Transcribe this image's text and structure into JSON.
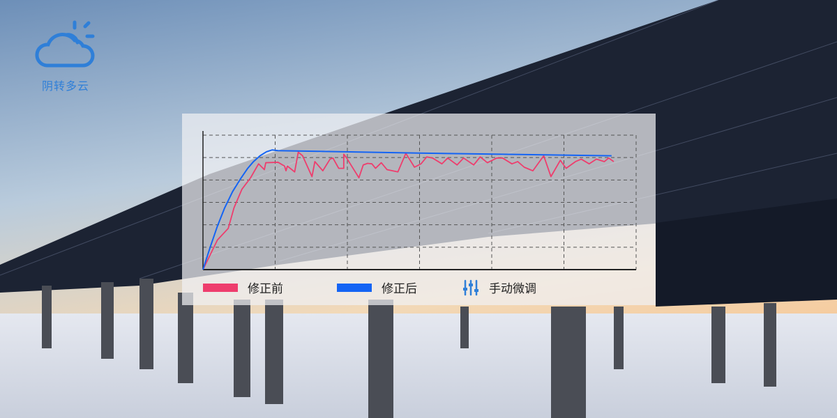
{
  "weather": {
    "label": "阴转多云",
    "icon": "cloud-sun-icon",
    "color": "#2f7fd8"
  },
  "legend": {
    "before": "修正前",
    "after": "修正后",
    "manual": "手动微调",
    "manual_icon": "sliders-icon"
  },
  "chart_data": {
    "type": "line",
    "title": "",
    "xlabel": "",
    "ylabel": "",
    "xlim": [
      0,
      6
    ],
    "ylim": [
      0,
      6
    ],
    "grid": true,
    "grid_style": "dashed",
    "legend_position": "bottom",
    "series": [
      {
        "name": "修正前",
        "color": "#ee3d6d",
        "points": [
          [
            0,
            0
          ],
          [
            0.2,
            1.32
          ],
          [
            0.35,
            1.84
          ],
          [
            0.43,
            2.76
          ],
          [
            0.54,
            3.59
          ],
          [
            0.66,
            4.1
          ],
          [
            0.77,
            4.72
          ],
          [
            0.85,
            4.46
          ],
          [
            0.87,
            4.77
          ],
          [
            1.04,
            4.79
          ],
          [
            1.13,
            4.62
          ],
          [
            1.15,
            4.41
          ],
          [
            1.17,
            4.62
          ],
          [
            1.27,
            4.36
          ],
          [
            1.32,
            5.24
          ],
          [
            1.38,
            5.08
          ],
          [
            1.51,
            4.15
          ],
          [
            1.55,
            4.82
          ],
          [
            1.66,
            4.41
          ],
          [
            1.76,
            4.93
          ],
          [
            1.8,
            4.98
          ],
          [
            1.88,
            4.52
          ],
          [
            1.95,
            4.52
          ],
          [
            1.95,
            5.15
          ],
          [
            1.99,
            4.98
          ],
          [
            2.16,
            4.1
          ],
          [
            2.22,
            4.67
          ],
          [
            2.28,
            4.74
          ],
          [
            2.34,
            4.72
          ],
          [
            2.39,
            4.52
          ],
          [
            2.47,
            4.77
          ],
          [
            2.55,
            4.46
          ],
          [
            2.7,
            4.36
          ],
          [
            2.81,
            5.19
          ],
          [
            2.93,
            4.57
          ],
          [
            3.02,
            4.72
          ],
          [
            3.1,
            5.03
          ],
          [
            3.18,
            4.98
          ],
          [
            3.31,
            4.72
          ],
          [
            3.39,
            4.98
          ],
          [
            3.52,
            4.67
          ],
          [
            3.61,
            4.98
          ],
          [
            3.75,
            4.67
          ],
          [
            3.84,
            5.03
          ],
          [
            3.94,
            4.77
          ],
          [
            4.07,
            4.98
          ],
          [
            4.15,
            4.98
          ],
          [
            4.28,
            4.72
          ],
          [
            4.36,
            4.82
          ],
          [
            4.45,
            4.57
          ],
          [
            4.57,
            4.41
          ],
          [
            4.72,
            5.08
          ],
          [
            4.82,
            4.15
          ],
          [
            4.95,
            4.88
          ],
          [
            5.03,
            4.52
          ],
          [
            5.16,
            4.82
          ],
          [
            5.24,
            4.93
          ],
          [
            5.35,
            4.72
          ],
          [
            5.45,
            4.93
          ],
          [
            5.56,
            4.82
          ],
          [
            5.62,
            4.98
          ],
          [
            5.69,
            4.82
          ]
        ]
      },
      {
        "name": "修正后",
        "color": "#1464f4",
        "points": [
          [
            0,
            0
          ],
          [
            0.1,
            1.0
          ],
          [
            0.2,
            1.94
          ],
          [
            0.3,
            2.75
          ],
          [
            0.41,
            3.48
          ],
          [
            0.52,
            4.05
          ],
          [
            0.62,
            4.52
          ],
          [
            0.7,
            4.82
          ],
          [
            0.79,
            5.08
          ],
          [
            0.88,
            5.26
          ],
          [
            0.96,
            5.34
          ],
          [
            1.04,
            5.31
          ],
          [
            3.0,
            5.2
          ],
          [
            5.66,
            5.08
          ]
        ]
      }
    ]
  }
}
